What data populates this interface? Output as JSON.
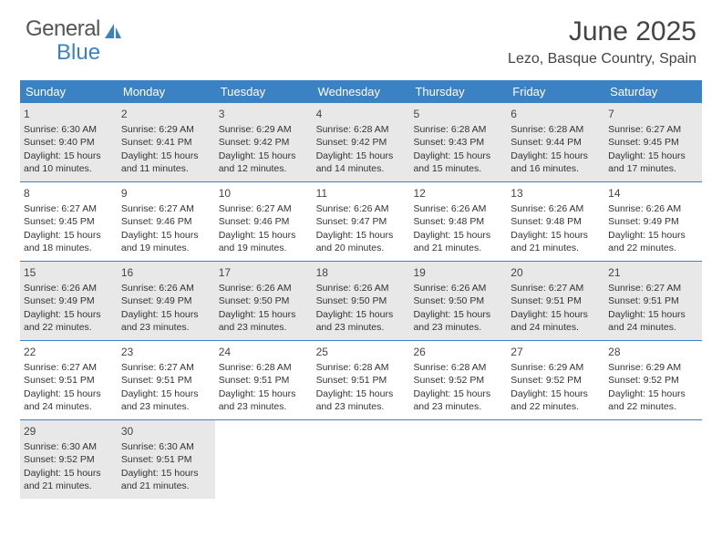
{
  "logo": {
    "textGray": "General",
    "textBlue": "Blue"
  },
  "title": "June 2025",
  "location": "Lezo, Basque Country, Spain",
  "colors": {
    "headerBg": "#3b82c4",
    "shadedBg": "#e8e8e8",
    "textDark": "#333333",
    "logoGray": "#555555"
  },
  "dayNames": [
    "Sunday",
    "Monday",
    "Tuesday",
    "Wednesday",
    "Thursday",
    "Friday",
    "Saturday"
  ],
  "weeks": [
    {
      "shaded": true,
      "days": [
        {
          "num": "1",
          "sunrise": "6:30 AM",
          "sunset": "9:40 PM",
          "daylight": "15 hours and 10 minutes."
        },
        {
          "num": "2",
          "sunrise": "6:29 AM",
          "sunset": "9:41 PM",
          "daylight": "15 hours and 11 minutes."
        },
        {
          "num": "3",
          "sunrise": "6:29 AM",
          "sunset": "9:42 PM",
          "daylight": "15 hours and 12 minutes."
        },
        {
          "num": "4",
          "sunrise": "6:28 AM",
          "sunset": "9:42 PM",
          "daylight": "15 hours and 14 minutes."
        },
        {
          "num": "5",
          "sunrise": "6:28 AM",
          "sunset": "9:43 PM",
          "daylight": "15 hours and 15 minutes."
        },
        {
          "num": "6",
          "sunrise": "6:28 AM",
          "sunset": "9:44 PM",
          "daylight": "15 hours and 16 minutes."
        },
        {
          "num": "7",
          "sunrise": "6:27 AM",
          "sunset": "9:45 PM",
          "daylight": "15 hours and 17 minutes."
        }
      ]
    },
    {
      "shaded": false,
      "days": [
        {
          "num": "8",
          "sunrise": "6:27 AM",
          "sunset": "9:45 PM",
          "daylight": "15 hours and 18 minutes."
        },
        {
          "num": "9",
          "sunrise": "6:27 AM",
          "sunset": "9:46 PM",
          "daylight": "15 hours and 19 minutes."
        },
        {
          "num": "10",
          "sunrise": "6:27 AM",
          "sunset": "9:46 PM",
          "daylight": "15 hours and 19 minutes."
        },
        {
          "num": "11",
          "sunrise": "6:26 AM",
          "sunset": "9:47 PM",
          "daylight": "15 hours and 20 minutes."
        },
        {
          "num": "12",
          "sunrise": "6:26 AM",
          "sunset": "9:48 PM",
          "daylight": "15 hours and 21 minutes."
        },
        {
          "num": "13",
          "sunrise": "6:26 AM",
          "sunset": "9:48 PM",
          "daylight": "15 hours and 21 minutes."
        },
        {
          "num": "14",
          "sunrise": "6:26 AM",
          "sunset": "9:49 PM",
          "daylight": "15 hours and 22 minutes."
        }
      ]
    },
    {
      "shaded": true,
      "days": [
        {
          "num": "15",
          "sunrise": "6:26 AM",
          "sunset": "9:49 PM",
          "daylight": "15 hours and 22 minutes."
        },
        {
          "num": "16",
          "sunrise": "6:26 AM",
          "sunset": "9:49 PM",
          "daylight": "15 hours and 23 minutes."
        },
        {
          "num": "17",
          "sunrise": "6:26 AM",
          "sunset": "9:50 PM",
          "daylight": "15 hours and 23 minutes."
        },
        {
          "num": "18",
          "sunrise": "6:26 AM",
          "sunset": "9:50 PM",
          "daylight": "15 hours and 23 minutes."
        },
        {
          "num": "19",
          "sunrise": "6:26 AM",
          "sunset": "9:50 PM",
          "daylight": "15 hours and 23 minutes."
        },
        {
          "num": "20",
          "sunrise": "6:27 AM",
          "sunset": "9:51 PM",
          "daylight": "15 hours and 24 minutes."
        },
        {
          "num": "21",
          "sunrise": "6:27 AM",
          "sunset": "9:51 PM",
          "daylight": "15 hours and 24 minutes."
        }
      ]
    },
    {
      "shaded": false,
      "days": [
        {
          "num": "22",
          "sunrise": "6:27 AM",
          "sunset": "9:51 PM",
          "daylight": "15 hours and 24 minutes."
        },
        {
          "num": "23",
          "sunrise": "6:27 AM",
          "sunset": "9:51 PM",
          "daylight": "15 hours and 23 minutes."
        },
        {
          "num": "24",
          "sunrise": "6:28 AM",
          "sunset": "9:51 PM",
          "daylight": "15 hours and 23 minutes."
        },
        {
          "num": "25",
          "sunrise": "6:28 AM",
          "sunset": "9:51 PM",
          "daylight": "15 hours and 23 minutes."
        },
        {
          "num": "26",
          "sunrise": "6:28 AM",
          "sunset": "9:52 PM",
          "daylight": "15 hours and 23 minutes."
        },
        {
          "num": "27",
          "sunrise": "6:29 AM",
          "sunset": "9:52 PM",
          "daylight": "15 hours and 22 minutes."
        },
        {
          "num": "28",
          "sunrise": "6:29 AM",
          "sunset": "9:52 PM",
          "daylight": "15 hours and 22 minutes."
        }
      ]
    },
    {
      "shaded": true,
      "days": [
        {
          "num": "29",
          "sunrise": "6:30 AM",
          "sunset": "9:52 PM",
          "daylight": "15 hours and 21 minutes."
        },
        {
          "num": "30",
          "sunrise": "6:30 AM",
          "sunset": "9:51 PM",
          "daylight": "15 hours and 21 minutes."
        },
        {
          "empty": true
        },
        {
          "empty": true
        },
        {
          "empty": true
        },
        {
          "empty": true
        },
        {
          "empty": true
        }
      ]
    }
  ],
  "labels": {
    "sunrise": "Sunrise: ",
    "sunset": "Sunset: ",
    "daylight": "Daylight: "
  }
}
